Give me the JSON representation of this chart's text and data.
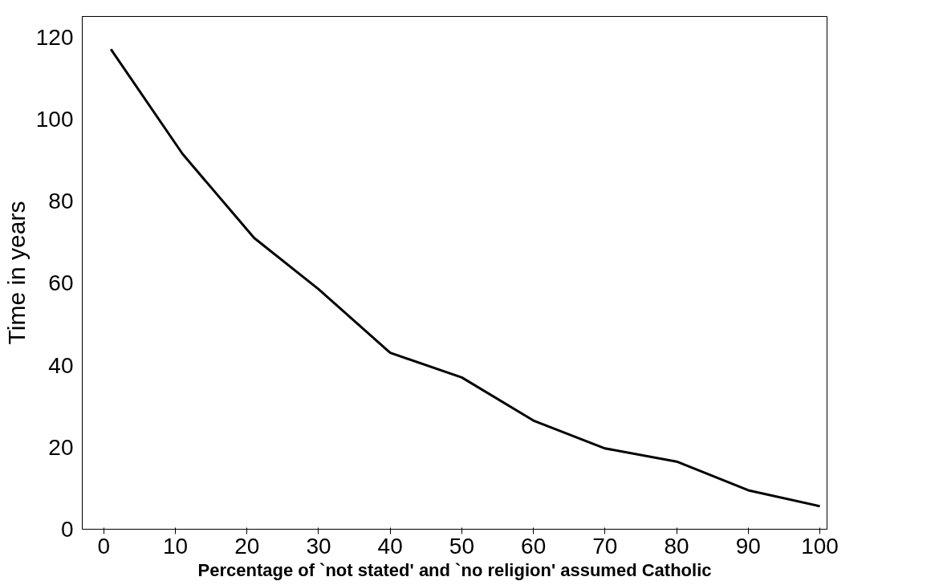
{
  "chart_data": {
    "type": "line",
    "xlabel": "Percentage of `not stated' and `no religion' assumed Catholic",
    "ylabel": "Time in years",
    "x": [
      1,
      11,
      21,
      30,
      40,
      50,
      60,
      70,
      80,
      90,
      100
    ],
    "series": [
      {
        "color": "#000000",
        "values": [
          117,
          91.5,
          71,
          58.5,
          43,
          37,
          26.5,
          19.7,
          16.5,
          9.5,
          5.6
        ]
      }
    ],
    "xlim": [
      -3,
      101
    ],
    "ylim": [
      0,
      125
    ],
    "xticks": [
      0,
      10,
      20,
      30,
      40,
      50,
      60,
      70,
      80,
      90,
      100
    ],
    "yticks": [
      0,
      20,
      40,
      60,
      80,
      100,
      120
    ],
    "grid": false,
    "marker": "none",
    "line_style": "solid"
  }
}
